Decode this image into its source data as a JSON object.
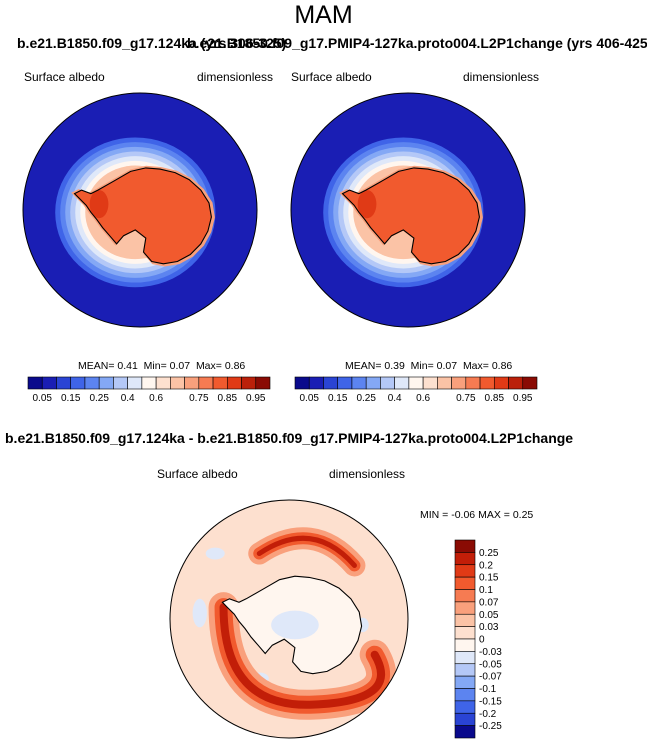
{
  "season_title": "MAM",
  "chart_data": [
    {
      "type": "heatmap",
      "projection": "south-polar-stereographic",
      "case_title": "b.e21.B1850.f09_g17.124ka (yrs 306-325)",
      "variable_label": "Surface albedo",
      "units_label": "dimensionless",
      "stats": {
        "mean_label": "MEAN=",
        "mean": "0.41",
        "min_label": "Min=",
        "min": "0.07",
        "max_label": "Max=",
        "max": "0.86"
      },
      "colorbar": {
        "levels": [
          "0.05",
          "0.1",
          "0.15",
          "0.2",
          "0.25",
          "0.3",
          "0.4",
          "0.5",
          "0.6",
          "0.65",
          "0.7",
          "0.75",
          "0.8",
          "0.85",
          "0.9",
          "0.95"
        ],
        "tick_labels": [
          "0.05",
          "0.15",
          "0.25",
          "0.4",
          "0.6",
          "0.75",
          "0.85",
          "0.95"
        ],
        "colors": [
          "#0a0a8c",
          "#1a1eb4",
          "#2a44d4",
          "#3f64e8",
          "#5c84f0",
          "#84a8f5",
          "#b4c8f7",
          "#dfe8f9",
          "#fff6ef",
          "#fde0cf",
          "#fbc3a6",
          "#f9a07c",
          "#f67b52",
          "#f15a2e",
          "#e03a16",
          "#bb200a",
          "#8a0b04"
        ]
      }
    },
    {
      "type": "heatmap",
      "projection": "south-polar-stereographic",
      "case_title": "b.e21.B1850.f09_g17.PMIP4-127ka.proto004.L2P1change (yrs 406-425)",
      "variable_label": "Surface albedo",
      "units_label": "dimensionless",
      "stats": {
        "mean_label": "MEAN=",
        "mean": "0.39",
        "min_label": "Min=",
        "min": "0.07",
        "max_label": "Max=",
        "max": "0.86"
      },
      "colorbar": {
        "levels": [
          "0.05",
          "0.1",
          "0.15",
          "0.2",
          "0.25",
          "0.3",
          "0.4",
          "0.5",
          "0.6",
          "0.65",
          "0.7",
          "0.75",
          "0.8",
          "0.85",
          "0.9",
          "0.95"
        ],
        "tick_labels": [
          "0.05",
          "0.15",
          "0.25",
          "0.4",
          "0.6",
          "0.75",
          "0.85",
          "0.95"
        ],
        "colors": [
          "#0a0a8c",
          "#1a1eb4",
          "#2a44d4",
          "#3f64e8",
          "#5c84f0",
          "#84a8f5",
          "#b4c8f7",
          "#dfe8f9",
          "#fff6ef",
          "#fde0cf",
          "#fbc3a6",
          "#f9a07c",
          "#f67b52",
          "#f15a2e",
          "#e03a16",
          "#bb200a",
          "#8a0b04"
        ]
      }
    },
    {
      "type": "heatmap",
      "projection": "south-polar-stereographic",
      "case_title": "b.e21.B1850.f09_g17.124ka - b.e21.B1850.f09_g17.PMIP4-127ka.proto004.L2P1change",
      "variable_label": "Surface albedo",
      "units_label": "dimensionless",
      "stats": {
        "min_label": "MIN =",
        "min": "-0.06",
        "max_label": "MAX =",
        "max": "0.25"
      },
      "colorbar": {
        "orientation": "vertical",
        "tick_labels": [
          "0.25",
          "0.2",
          "0.15",
          "0.1",
          "0.07",
          "0.05",
          "0.03",
          "0",
          "-0.03",
          "-0.05",
          "-0.07",
          "-0.1",
          "-0.15",
          "-0.2",
          "-0.25"
        ],
        "colors": [
          "#8a0b04",
          "#c21e08",
          "#e03a16",
          "#f15a2e",
          "#f67b52",
          "#f9a07c",
          "#fbc3a6",
          "#fde0cf",
          "#fff6ef",
          "#dfe8f9",
          "#b4c8f7",
          "#84a8f5",
          "#5c84f0",
          "#3f64e8",
          "#2a44d4",
          "#0a0a8c"
        ]
      }
    }
  ]
}
